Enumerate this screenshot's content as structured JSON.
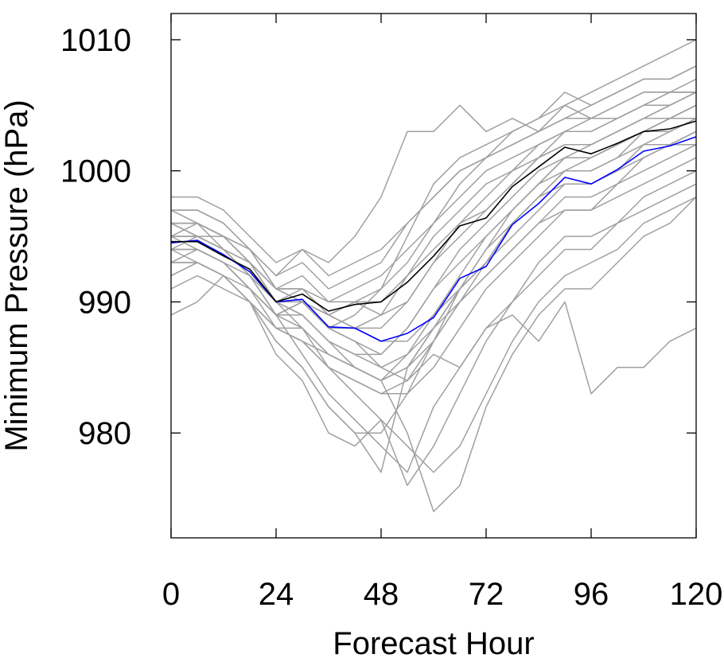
{
  "chart_data": {
    "type": "line",
    "xlabel": "Forecast Hour",
    "ylabel": "Minimum Pressure (hPa)",
    "xlim": [
      0,
      120
    ],
    "ylim": [
      972,
      1012
    ],
    "xticks": [
      0,
      24,
      48,
      72,
      96,
      120
    ],
    "yticks": [
      980,
      990,
      1000,
      1010
    ],
    "grid": false,
    "legend": "none",
    "colors": {
      "members": "#a0a0a0",
      "mean": "#000000",
      "highlight": "#0000ff",
      "axis": "#000000"
    },
    "x": [
      0,
      6,
      12,
      18,
      24,
      30,
      36,
      42,
      48,
      54,
      60,
      66,
      72,
      78,
      84,
      90,
      96,
      102,
      108,
      114,
      120
    ],
    "members": [
      [
        996,
        996,
        995,
        993,
        990,
        991,
        989,
        990,
        990,
        992,
        994,
        996,
        997,
        999,
        1001,
        1002,
        1002,
        1003,
        1004,
        1004,
        1005
      ],
      [
        995,
        995,
        994,
        992,
        989,
        990,
        988,
        987,
        986,
        988,
        991,
        993,
        995,
        997,
        999,
        1000,
        1000,
        1001,
        1002,
        1002,
        1003
      ],
      [
        997,
        997,
        996,
        994,
        991,
        992,
        990,
        991,
        992,
        994,
        996,
        998,
        1000,
        1001,
        1002,
        1003,
        1003,
        1004,
        1005,
        1006,
        1006
      ],
      [
        994,
        994,
        993,
        991,
        988,
        987,
        985,
        984,
        983,
        984,
        987,
        990,
        992,
        994,
        996,
        998,
        998,
        999,
        1001,
        1002,
        1003
      ],
      [
        993,
        994,
        993,
        991,
        989,
        990,
        988,
        989,
        991,
        995,
        999,
        1001,
        1002,
        1003,
        1004,
        1005,
        1004,
        1005,
        1006,
        1006,
        1007
      ],
      [
        996,
        995,
        994,
        993,
        991,
        991,
        989,
        988,
        987,
        987,
        989,
        991,
        993,
        996,
        998,
        999,
        999,
        1000,
        1001,
        1002,
        1002
      ],
      [
        992,
        993,
        992,
        990,
        987,
        985,
        982,
        980,
        980,
        983,
        987,
        991,
        994,
        997,
        999,
        1001,
        1001,
        1002,
        1003,
        1003,
        1004
      ],
      [
        995,
        996,
        995,
        994,
        992,
        993,
        991,
        992,
        993,
        996,
        998,
        1000,
        1001,
        1002,
        1003,
        1004,
        1005,
        1006,
        1007,
        1007,
        1008
      ],
      [
        994,
        993,
        992,
        990,
        986,
        984,
        980,
        979,
        981,
        976,
        979,
        983,
        987,
        990,
        993,
        995,
        995,
        996,
        998,
        999,
        1000
      ],
      [
        997,
        996,
        995,
        994,
        992,
        994,
        993,
        995,
        998,
        1003,
        1003,
        1005,
        1003,
        1004,
        1003,
        1005,
        1006,
        1007,
        1008,
        1009,
        1010
      ],
      [
        993,
        993,
        992,
        990,
        988,
        988,
        986,
        985,
        984,
        985,
        988,
        991,
        993,
        995,
        997,
        999,
        999,
        1000,
        1002,
        1003,
        1004
      ],
      [
        995,
        994,
        993,
        992,
        990,
        989,
        987,
        986,
        985,
        986,
        988,
        991,
        994,
        996,
        998,
        1000,
        1000,
        1001,
        1003,
        1004,
        1005
      ],
      [
        996,
        996,
        995,
        993,
        991,
        990,
        989,
        988,
        989,
        992,
        995,
        997,
        999,
        1000,
        1001,
        1003,
        1003,
        1004,
        1005,
        1005,
        1006
      ],
      [
        994,
        995,
        994,
        992,
        990,
        988,
        985,
        983,
        981,
        979,
        977,
        979,
        983,
        987,
        990,
        992,
        993,
        994,
        996,
        997,
        998
      ],
      [
        991,
        992,
        991,
        990,
        988,
        987,
        986,
        985,
        984,
        980,
        974,
        976,
        982,
        986,
        989,
        991,
        991,
        993,
        995,
        996,
        998
      ],
      [
        989,
        990,
        992,
        990,
        987,
        985,
        982,
        980,
        977,
        985,
        988,
        990,
        992,
        994,
        996,
        997,
        997,
        998,
        999,
        1000,
        1001
      ],
      [
        995,
        995,
        994,
        992,
        989,
        986,
        983,
        981,
        979,
        977,
        982,
        985,
        988,
        990,
        992,
        994,
        994,
        996,
        997,
        998,
        999
      ],
      [
        996,
        995,
        994,
        993,
        991,
        990,
        988,
        987,
        985,
        984,
        986,
        985,
        988,
        989,
        987,
        990,
        983,
        985,
        985,
        987,
        988
      ],
      [
        998,
        998,
        997,
        995,
        993,
        994,
        992,
        993,
        994,
        996,
        998,
        1000,
        1001,
        1003,
        1004,
        1006,
        1005,
        1006,
        1007,
        1007,
        1008
      ],
      [
        993,
        994,
        993,
        991,
        989,
        990,
        989,
        990,
        991,
        993,
        996,
        999,
        1001,
        1002,
        1003,
        1004,
        1004,
        1005,
        1006,
        1006,
        1006
      ],
      [
        994,
        994,
        993,
        991,
        989,
        989,
        987,
        986,
        986,
        988,
        991,
        994,
        996,
        998,
        1000,
        1001,
        1001,
        1002,
        1003,
        1004,
        1005
      ],
      [
        992,
        993,
        992,
        991,
        989,
        988,
        986,
        985,
        984,
        986,
        989,
        992,
        995,
        997,
        999,
        1001,
        1002,
        1003,
        1004,
        1005,
        1006
      ],
      [
        995,
        995,
        995,
        993,
        990,
        989,
        987,
        985,
        984,
        985,
        987,
        990,
        993,
        996,
        998,
        1000,
        1001,
        1002,
        1003,
        1004,
        1004
      ],
      [
        997,
        997,
        996,
        994,
        991,
        991,
        990,
        990,
        989,
        990,
        993,
        996,
        998,
        1000,
        1002,
        1003,
        1004,
        1004,
        1005,
        1006,
        1006
      ],
      [
        993,
        993,
        992,
        990,
        988,
        987,
        985,
        984,
        983,
        983,
        985,
        988,
        991,
        993,
        995,
        997,
        997,
        999,
        1000,
        1001,
        1002
      ],
      [
        996,
        996,
        994,
        993,
        990,
        990,
        988,
        988,
        988,
        990,
        993,
        995,
        997,
        999,
        1001,
        1002,
        1002,
        1003,
        1004,
        1005,
        1006
      ]
    ],
    "series": [
      {
        "values": [
          994.5,
          994.7,
          993.6,
          992.3,
          990.0,
          990.2,
          988.1,
          988.0,
          987.0,
          987.6,
          988.8,
          991.8,
          992.7,
          995.9,
          997.5,
          999.5,
          999.0,
          1000.1,
          1001.5,
          1001.9,
          1002.6
        ]
      },
      {
        "values": [
          994.6,
          994.6,
          993.5,
          992.5,
          990.0,
          990.6,
          989.3,
          989.8,
          990.0,
          991.5,
          993.5,
          995.8,
          996.4,
          998.8,
          1000.3,
          1001.8,
          1001.3,
          1002.1,
          1003.0,
          1003.2,
          1003.8
        ]
      }
    ]
  }
}
